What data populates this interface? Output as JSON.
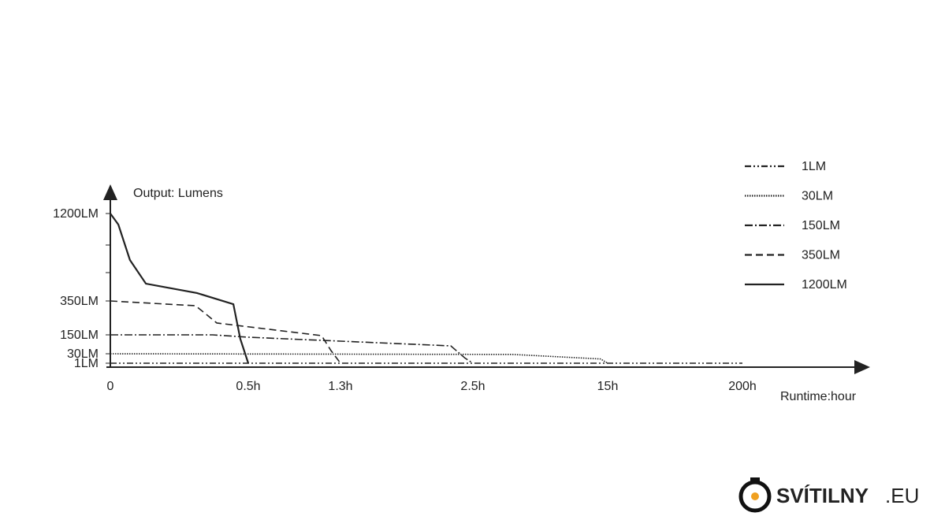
{
  "chart_data": {
    "type": "line",
    "y_label": "Output: Lumens",
    "x_label": "Runtime:hour",
    "xticks": [
      0,
      {
        "value": 0.5,
        "label": "0.5h"
      },
      {
        "value": 1.3,
        "label": "1.3h"
      },
      {
        "value": 2.5,
        "label": "2.5h"
      },
      {
        "value": 15,
        "label": "15h"
      },
      {
        "value": 200,
        "label": "200h"
      }
    ],
    "yticks": [
      {
        "value": 1,
        "label": "1LM"
      },
      {
        "value": 30,
        "label": "30LM"
      },
      {
        "value": 150,
        "label": "150LM"
      },
      {
        "value": 350,
        "label": "350LM"
      },
      {
        "value": 1200,
        "label": "1200LM"
      }
    ],
    "legend_position": "upper right",
    "series": [
      {
        "name": "1LM",
        "color": "#222222",
        "dash": "dash-dot-dot",
        "x": [
          0,
          200
        ],
        "values": [
          1,
          1
        ]
      },
      {
        "name": "30LM",
        "color": "#222222",
        "dash": "dotted",
        "x": [
          0,
          6.15,
          14.34,
          15
        ],
        "values": [
          30,
          28,
          14,
          1
        ]
      },
      {
        "name": "150LM",
        "color": "#222222",
        "dash": "dash-dot",
        "x": [
          0,
          0.371,
          0.5,
          1.3,
          2.3,
          2.429,
          2.5
        ],
        "values": [
          150,
          150,
          135,
          110,
          80,
          16.6,
          1
        ]
      },
      {
        "name": "350LM",
        "color": "#222222",
        "dash": "dashed",
        "x": [
          0,
          0.309,
          0.386,
          0.457,
          1.136,
          1.218,
          1.3
        ],
        "values": [
          350,
          322,
          220,
          206,
          145,
          50,
          1
        ]
      },
      {
        "name": "1200LM",
        "color": "#222222",
        "dash": "solid",
        "x": [
          0,
          0.029,
          0.071,
          0.129,
          0.314,
          0.446,
          0.471,
          0.5
        ],
        "values": [
          1200,
          1093,
          748,
          518,
          427,
          331,
          125,
          1
        ]
      }
    ]
  },
  "watermark": {
    "brand": "SVÍTILNY",
    "suffix": ".EU"
  }
}
